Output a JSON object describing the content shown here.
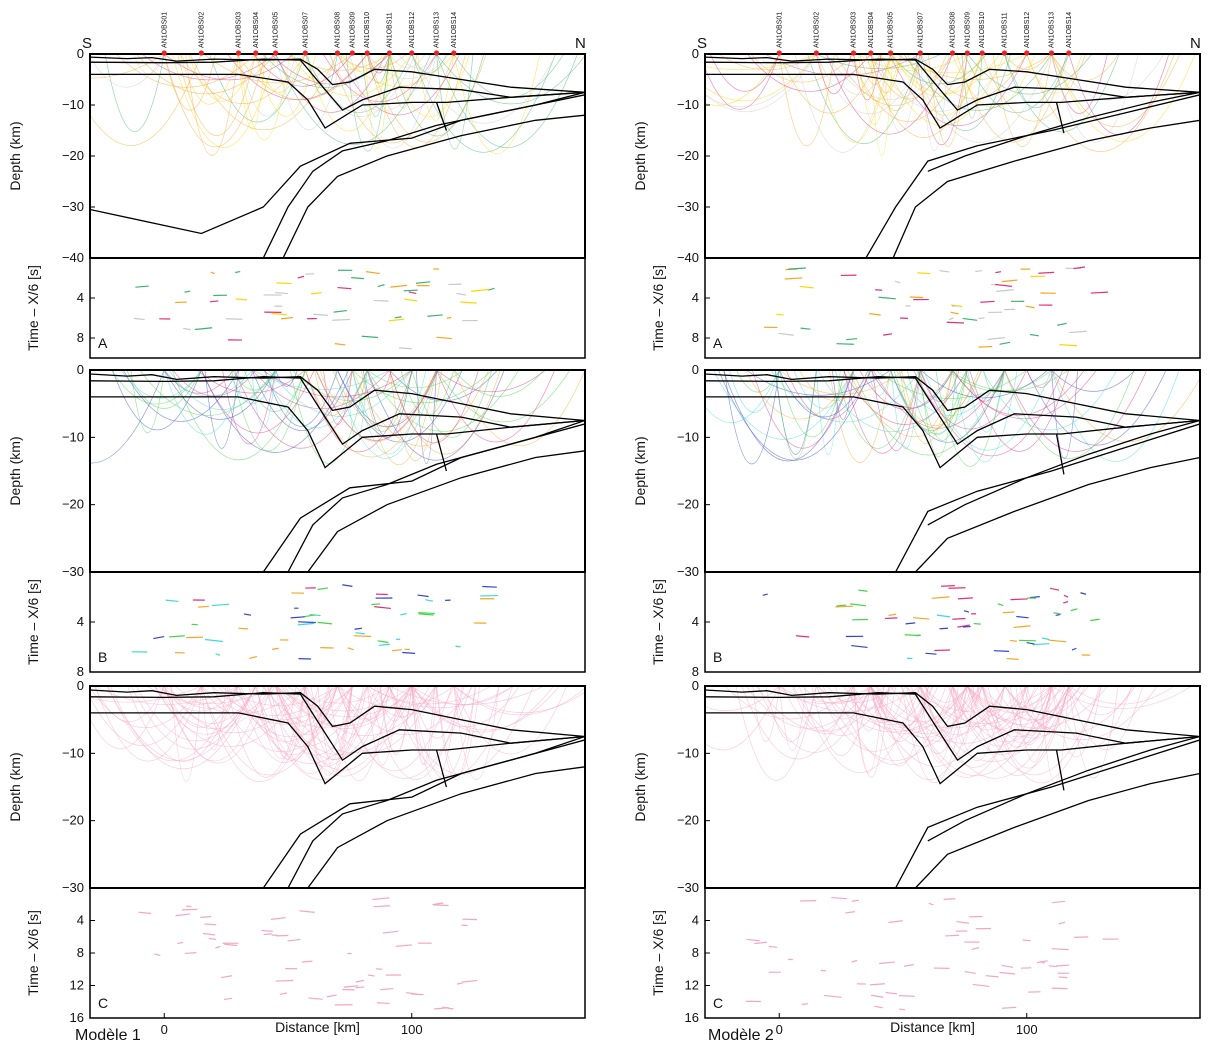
{
  "chart_data": {
    "type": "line",
    "distance_axis": {
      "label": "Distance [km]",
      "range": [
        -30,
        170
      ],
      "ticks": [
        0,
        100
      ]
    },
    "depth_label": "Depth (km)",
    "time_label": "Time – X/6 [s]",
    "directions": {
      "left": "S",
      "right": "N"
    },
    "stations": [
      {
        "name": "AN1OBS01",
        "x": 0
      },
      {
        "name": "AN1OBS02",
        "x": 15
      },
      {
        "name": "AN1OBS03",
        "x": 30
      },
      {
        "name": "AN1OBS04",
        "x": 37
      },
      {
        "name": "AN1OBS05",
        "x": 45
      },
      {
        "name": "AN1OBS07",
        "x": 57
      },
      {
        "name": "AN1OBS08",
        "x": 70
      },
      {
        "name": "AN1OBS09",
        "x": 76
      },
      {
        "name": "AN1OBS10",
        "x": 82
      },
      {
        "name": "AN1OBS11",
        "x": 91
      },
      {
        "name": "AN1OBS12",
        "x": 100
      },
      {
        "name": "AN1OBS13",
        "x": 110
      },
      {
        "name": "AN1OBS14",
        "x": 117
      }
    ],
    "models": [
      {
        "caption": "Modèle 1"
      },
      {
        "caption": "Modèle 2"
      }
    ],
    "rows": [
      {
        "label": "A",
        "depth_range": [
          -40,
          0
        ],
        "depth_ticks": [
          0,
          -10,
          -20,
          -30,
          -40
        ],
        "time_range": [
          0,
          10
        ],
        "time_ticks": [
          4,
          8
        ],
        "ray_colors": [
          "#c8c8c8",
          "#e0307f",
          "#ffd700",
          "#f5a623",
          "#3cb371"
        ],
        "show_stations": true
      },
      {
        "label": "B",
        "depth_range": [
          -30,
          0
        ],
        "depth_ticks": [
          0,
          -10,
          -20,
          -30
        ],
        "time_range": [
          0,
          8
        ],
        "time_ticks": [
          4,
          8
        ],
        "ray_colors": [
          "#44d444",
          "#40d8d8",
          "#3344cc",
          "#e0307f",
          "#f5a623"
        ],
        "show_stations": false
      },
      {
        "label": "C",
        "depth_range": [
          -30,
          0
        ],
        "depth_ticks": [
          0,
          -10,
          -20,
          -30
        ],
        "time_range": [
          0,
          16
        ],
        "time_ticks": [
          4,
          8,
          12,
          16
        ],
        "ray_colors": [
          "#f4a6c0"
        ],
        "show_stations": false
      }
    ],
    "interfaces_model1": [
      [
        [
          -30,
          -0.6
        ],
        [
          -15,
          -0.9
        ],
        [
          -5,
          -0.7
        ],
        [
          5,
          -1.4
        ],
        [
          20,
          -1.0
        ],
        [
          40,
          -1.2
        ],
        [
          55,
          -1.0
        ],
        [
          62,
          -3.0
        ],
        [
          68,
          -6.0
        ],
        [
          75,
          -5.5
        ],
        [
          85,
          -3.0
        ],
        [
          100,
          -3.5
        ],
        [
          120,
          -5.0
        ],
        [
          140,
          -6.5
        ],
        [
          170,
          -7.5
        ]
      ],
      [
        [
          -30,
          -1.6
        ],
        [
          0,
          -1.7
        ],
        [
          20,
          -1.6
        ],
        [
          40,
          -1.0
        ],
        [
          55,
          -1.2
        ],
        [
          65,
          -7.0
        ],
        [
          72,
          -11.0
        ],
        [
          80,
          -9.0
        ],
        [
          95,
          -6.5
        ],
        [
          120,
          -7.0
        ],
        [
          140,
          -8.5
        ],
        [
          170,
          -7.5
        ]
      ],
      [
        [
          -30,
          -4.0
        ],
        [
          30,
          -4.0
        ],
        [
          50,
          -5.5
        ],
        [
          58,
          -9.0
        ],
        [
          65,
          -14.5
        ],
        [
          70,
          -13.0
        ],
        [
          80,
          -10.0
        ],
        [
          100,
          -9.5
        ],
        [
          114,
          -9.5
        ],
        [
          140,
          -8.5
        ],
        [
          170,
          -7.5
        ]
      ],
      [
        [
          -30,
          -30.5
        ],
        [
          15,
          -35.2
        ],
        [
          40,
          -30.0
        ],
        [
          55,
          -22.0
        ],
        [
          75,
          -17.5
        ],
        [
          100,
          -16.5
        ],
        [
          120,
          -13.0
        ],
        [
          150,
          -10.0
        ],
        [
          170,
          -7.5
        ]
      ],
      [
        [
          40,
          -40.0
        ],
        [
          50,
          -30.0
        ],
        [
          60,
          -23.0
        ],
        [
          72,
          -19.0
        ],
        [
          90,
          -17.0
        ],
        [
          110,
          -14.0
        ],
        [
          140,
          -11.0
        ],
        [
          170,
          -8.0
        ]
      ],
      [
        [
          48,
          -40.0
        ],
        [
          58,
          -30.0
        ],
        [
          70,
          -24.0
        ],
        [
          90,
          -20.0
        ],
        [
          120,
          -16.0
        ],
        [
          150,
          -13.0
        ],
        [
          170,
          -12.0
        ]
      ],
      [
        [
          110,
          -9.5
        ],
        [
          114,
          -15.0
        ]
      ]
    ],
    "interfaces_model2": [
      [
        [
          -30,
          -0.6
        ],
        [
          -15,
          -0.9
        ],
        [
          -5,
          -0.7
        ],
        [
          5,
          -1.4
        ],
        [
          20,
          -1.0
        ],
        [
          40,
          -1.2
        ],
        [
          55,
          -1.0
        ],
        [
          62,
          -3.0
        ],
        [
          68,
          -6.0
        ],
        [
          75,
          -5.5
        ],
        [
          85,
          -3.0
        ],
        [
          100,
          -3.5
        ],
        [
          120,
          -5.0
        ],
        [
          140,
          -6.5
        ],
        [
          170,
          -7.5
        ]
      ],
      [
        [
          -30,
          -1.6
        ],
        [
          0,
          -1.7
        ],
        [
          20,
          -1.6
        ],
        [
          40,
          -1.0
        ],
        [
          55,
          -1.2
        ],
        [
          65,
          -7.0
        ],
        [
          72,
          -11.0
        ],
        [
          80,
          -9.0
        ],
        [
          95,
          -6.5
        ],
        [
          120,
          -7.0
        ],
        [
          140,
          -8.5
        ],
        [
          170,
          -7.5
        ]
      ],
      [
        [
          -30,
          -4.0
        ],
        [
          30,
          -4.0
        ],
        [
          50,
          -5.5
        ],
        [
          58,
          -9.0
        ],
        [
          65,
          -14.5
        ],
        [
          70,
          -13.0
        ],
        [
          80,
          -10.0
        ],
        [
          100,
          -9.5
        ],
        [
          114,
          -9.5
        ],
        [
          140,
          -8.5
        ],
        [
          170,
          -7.5
        ]
      ],
      [
        [
          60,
          -23.0
        ],
        [
          75,
          -20.0
        ],
        [
          100,
          -16.0
        ],
        [
          125,
          -12.5
        ],
        [
          150,
          -9.5
        ],
        [
          170,
          -7.5
        ]
      ],
      [
        [
          35,
          -40.0
        ],
        [
          47,
          -30.0
        ],
        [
          60,
          -21.0
        ],
        [
          80,
          -18.0
        ],
        [
          110,
          -15.0
        ],
        [
          140,
          -11.5
        ],
        [
          170,
          -8.0
        ]
      ],
      [
        [
          46,
          -40.0
        ],
        [
          55,
          -30.0
        ],
        [
          68,
          -25.0
        ],
        [
          95,
          -21.0
        ],
        [
          125,
          -17.0
        ],
        [
          150,
          -14.5
        ],
        [
          170,
          -13.0
        ]
      ],
      [
        [
          112,
          -9.5
        ],
        [
          115,
          -15.5
        ]
      ]
    ]
  }
}
